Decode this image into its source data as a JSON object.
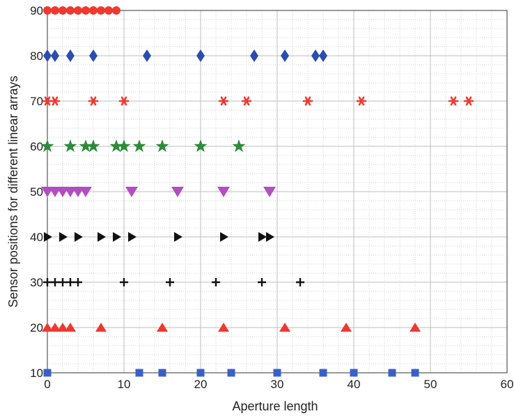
{
  "chart_data": {
    "type": "scatter",
    "title": "",
    "xlabel": "Aperture length",
    "ylabel": "Sensor positions for different linear arrays",
    "xlim": [
      0,
      60
    ],
    "ylim": [
      10,
      90
    ],
    "xticks": [
      "0",
      "10",
      "20",
      "30",
      "40",
      "50",
      "60"
    ],
    "yticks": [
      "10",
      "20",
      "30",
      "40",
      "50",
      "60",
      "70",
      "80",
      "90"
    ],
    "grid": true,
    "series": [
      {
        "marker": "square",
        "color": "#3a5fc8",
        "y": 10,
        "x": [
          0,
          12,
          15,
          20,
          24,
          30,
          36,
          40,
          45,
          48
        ]
      },
      {
        "marker": "triangle-up",
        "color": "#f0382e",
        "y": 20,
        "x": [
          0,
          1,
          2,
          3,
          7,
          15,
          23,
          31,
          39,
          48
        ]
      },
      {
        "marker": "plus",
        "color": "#111111",
        "y": 30,
        "x": [
          0,
          1,
          2,
          3,
          4,
          10,
          16,
          22,
          28,
          33
        ]
      },
      {
        "marker": "triangle-right",
        "color": "#111111",
        "y": 40,
        "x": [
          0,
          2,
          4,
          7,
          9,
          11,
          17,
          23,
          28,
          29
        ]
      },
      {
        "marker": "triangle-down",
        "color": "#b24fc0",
        "y": 50,
        "x": [
          0,
          1,
          2,
          3,
          4,
          5,
          11,
          17,
          23,
          29
        ]
      },
      {
        "marker": "star",
        "color": "#2e8b3a",
        "y": 60,
        "x": [
          0,
          3,
          5,
          6,
          9,
          10,
          12,
          15,
          20,
          25
        ]
      },
      {
        "marker": "asterisk",
        "color": "#f0382e",
        "y": 70,
        "x": [
          0,
          1,
          6,
          10,
          23,
          26,
          34,
          41,
          53,
          55
        ]
      },
      {
        "marker": "diamond",
        "color": "#2b4db0",
        "y": 80,
        "x": [
          0,
          1,
          3,
          6,
          13,
          20,
          27,
          31,
          35,
          36
        ]
      },
      {
        "marker": "circle",
        "color": "#f0382e",
        "y": 90,
        "x": [
          0,
          1,
          2,
          3,
          4,
          5,
          6,
          7,
          8,
          9
        ]
      }
    ]
  }
}
